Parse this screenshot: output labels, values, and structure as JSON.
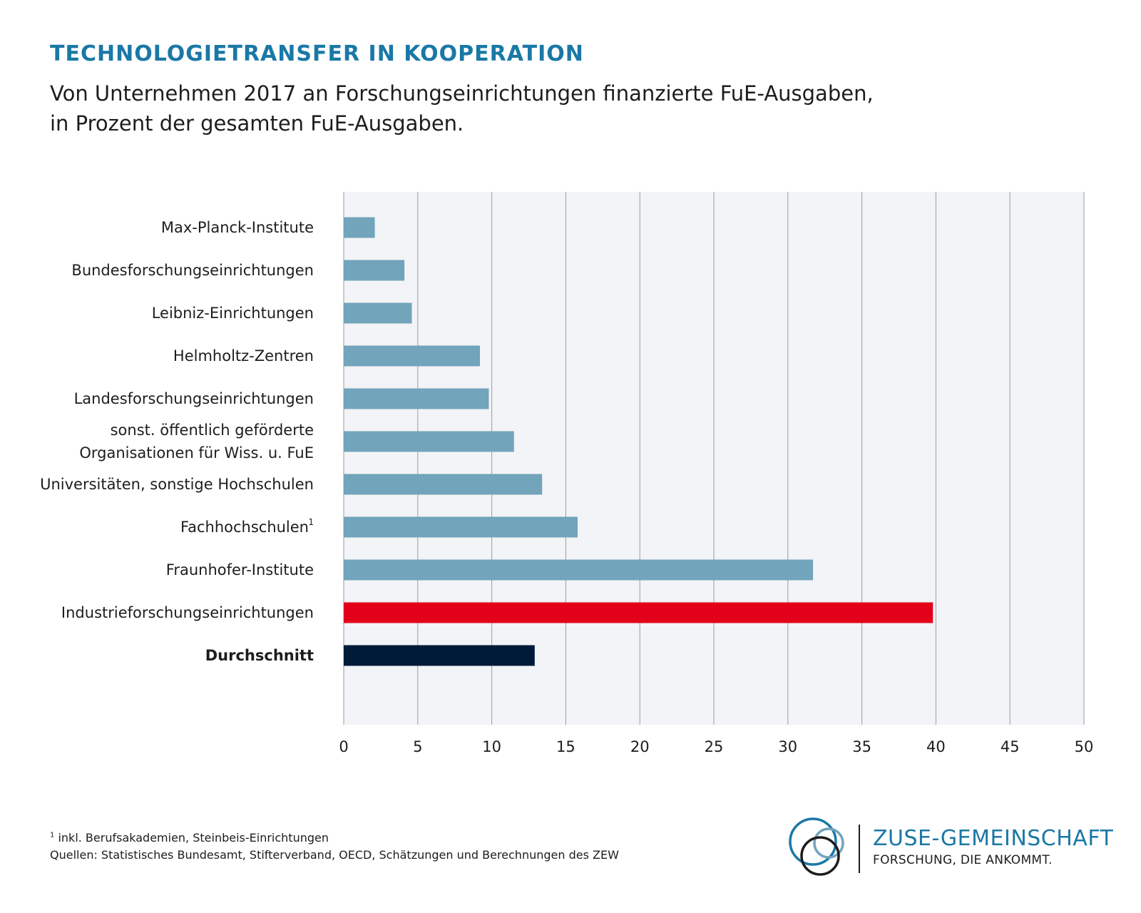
{
  "chart_data": {
    "type": "bar",
    "orientation": "horizontal",
    "title": "TECHNOLOGIETRANSFER IN KOOPERATION",
    "subtitle_lines": [
      "Von Unternehmen 2017 an Forschungseinrichtungen finanzierte FuE-Ausgaben,",
      "in Prozent der gesamten FuE-Ausgaben."
    ],
    "categories": [
      [
        "Max-Planck-Institute"
      ],
      [
        "Bundesforschungseinrichtungen"
      ],
      [
        "Leibniz-Einrichtungen"
      ],
      [
        "Helmholtz-Zentren"
      ],
      [
        "Landesforschungseinrichtungen"
      ],
      [
        "sonst. öffentlich geförderte",
        "Organisationen für Wiss. u. FuE"
      ],
      [
        "Universitäten, sonstige Hochschulen"
      ],
      [
        "Fachhochschulen"
      ],
      [
        "Fraunhofer-Institute"
      ],
      [
        "Industrieforschungseinrichtungen"
      ],
      [
        "Durchschnitt"
      ]
    ],
    "category_superscripts": [
      "",
      "",
      "",
      "",
      "",
      "",
      "",
      "1",
      "",
      "",
      ""
    ],
    "values": [
      2.1,
      4.1,
      4.6,
      9.2,
      9.8,
      11.5,
      13.4,
      15.8,
      31.7,
      39.8,
      12.9
    ],
    "bar_colors": [
      "#72a4bb",
      "#72a4bb",
      "#72a4bb",
      "#72a4bb",
      "#72a4bb",
      "#72a4bb",
      "#72a4bb",
      "#72a4bb",
      "#72a4bb",
      "#e2001a",
      "#001b38"
    ],
    "bold_categories": [
      "Durchschnitt"
    ],
    "xlim": [
      0,
      50
    ],
    "xticks": [
      0,
      5,
      10,
      15,
      20,
      25,
      30,
      35,
      40,
      45,
      50
    ],
    "grid": true,
    "plot_background": "#f3f4f7",
    "grid_color": "#9c9c9c"
  },
  "footnotes": {
    "note_marker": "1",
    "note_text": " inkl. Berufsakademien, Steinbeis-Einrichtungen",
    "sources": "Quellen: Statistisches Bundesamt, Stifterverband, OECD, Schätzungen und Berechnungen des ZEW"
  },
  "logo": {
    "name": "ZUSE-GEMEINSCHAFT",
    "claim": "FORSCHUNG, DIE ANKOMMT.",
    "color_primary": "#1a78a6",
    "color_secondary": "#72a4bb",
    "color_dark": "#1d1d1b"
  }
}
